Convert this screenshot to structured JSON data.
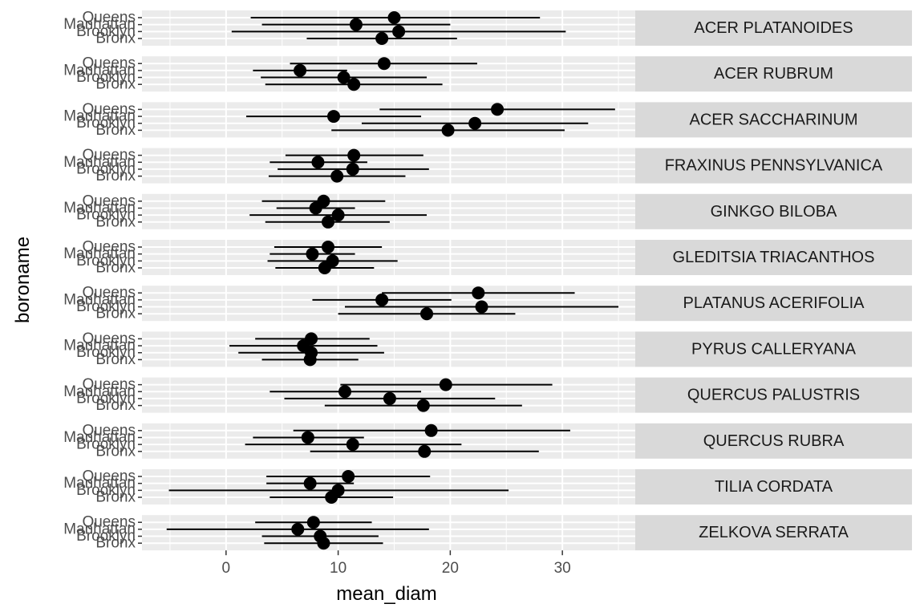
{
  "chart_data": {
    "type": "scatter",
    "subtype": "faceted point-range (mean ± error bar)",
    "xlabel": "mean_diam",
    "ylabel": "boroname",
    "xlim": [
      -7.5,
      36.5
    ],
    "x_ticks": [
      0,
      10,
      20,
      30
    ],
    "boroughs": [
      "Queens",
      "Manhattan",
      "Brooklyn",
      "Bronx"
    ],
    "grid": "on",
    "strip_position": "right",
    "colors": {
      "panel_bg": "#ebebeb",
      "strip_bg": "#d9d9d9",
      "point": "#000000",
      "gridline": "#ffffff"
    },
    "facets": [
      {
        "species": "ACER PLATANOIDES",
        "points": [
          {
            "borough": "Queens",
            "mean": 15.0,
            "lo": 2.2,
            "hi": 28.0
          },
          {
            "borough": "Manhattan",
            "mean": 11.6,
            "lo": 3.2,
            "hi": 20.0
          },
          {
            "borough": "Brooklyn",
            "mean": 15.4,
            "lo": 0.5,
            "hi": 30.3
          },
          {
            "borough": "Bronx",
            "mean": 13.9,
            "lo": 7.2,
            "hi": 20.6
          }
        ]
      },
      {
        "species": "ACER RUBRUM",
        "points": [
          {
            "borough": "Queens",
            "mean": 14.1,
            "lo": 5.7,
            "hi": 22.4
          },
          {
            "borough": "Manhattan",
            "mean": 6.6,
            "lo": 2.4,
            "hi": 10.8
          },
          {
            "borough": "Brooklyn",
            "mean": 10.5,
            "lo": 3.1,
            "hi": 17.9
          },
          {
            "borough": "Bronx",
            "mean": 11.4,
            "lo": 3.5,
            "hi": 19.3
          }
        ]
      },
      {
        "species": "ACER SACCHARINUM",
        "points": [
          {
            "borough": "Queens",
            "mean": 24.2,
            "lo": 13.7,
            "hi": 34.7
          },
          {
            "borough": "Manhattan",
            "mean": 9.6,
            "lo": 1.8,
            "hi": 17.4
          },
          {
            "borough": "Brooklyn",
            "mean": 22.2,
            "lo": 12.1,
            "hi": 32.3
          },
          {
            "borough": "Bronx",
            "mean": 19.8,
            "lo": 9.4,
            "hi": 30.2
          }
        ]
      },
      {
        "species": "FRAXINUS PENNSYLVANICA",
        "points": [
          {
            "borough": "Queens",
            "mean": 11.4,
            "lo": 5.3,
            "hi": 17.6
          },
          {
            "borough": "Manhattan",
            "mean": 8.2,
            "lo": 3.9,
            "hi": 12.6
          },
          {
            "borough": "Brooklyn",
            "mean": 11.3,
            "lo": 4.6,
            "hi": 18.1
          },
          {
            "borough": "Bronx",
            "mean": 9.9,
            "lo": 3.8,
            "hi": 16.0
          }
        ]
      },
      {
        "species": "GINKGO BILOBA",
        "points": [
          {
            "borough": "Queens",
            "mean": 8.7,
            "lo": 3.2,
            "hi": 14.2
          },
          {
            "borough": "Manhattan",
            "mean": 8.0,
            "lo": 4.5,
            "hi": 11.5
          },
          {
            "borough": "Brooklyn",
            "mean": 10.0,
            "lo": 2.1,
            "hi": 17.9
          },
          {
            "borough": "Bronx",
            "mean": 9.1,
            "lo": 3.5,
            "hi": 14.6
          }
        ]
      },
      {
        "species": "GLEDITSIA TRIACANTHOS",
        "points": [
          {
            "borough": "Queens",
            "mean": 9.1,
            "lo": 4.3,
            "hi": 13.9
          },
          {
            "borough": "Manhattan",
            "mean": 7.7,
            "lo": 3.9,
            "hi": 11.5
          },
          {
            "borough": "Brooklyn",
            "mean": 9.5,
            "lo": 3.7,
            "hi": 15.3
          },
          {
            "borough": "Bronx",
            "mean": 8.8,
            "lo": 4.4,
            "hi": 13.2
          }
        ]
      },
      {
        "species": "PLATANUS ACERIFOLIA",
        "points": [
          {
            "borough": "Queens",
            "mean": 22.5,
            "lo": 13.9,
            "hi": 31.1
          },
          {
            "borough": "Manhattan",
            "mean": 13.9,
            "lo": 7.7,
            "hi": 20.1
          },
          {
            "borough": "Brooklyn",
            "mean": 22.8,
            "lo": 10.6,
            "hi": 35.0
          },
          {
            "borough": "Bronx",
            "mean": 17.9,
            "lo": 10.0,
            "hi": 25.8
          }
        ]
      },
      {
        "species": "PYRUS CALLERYANA",
        "points": [
          {
            "borough": "Queens",
            "mean": 7.6,
            "lo": 2.6,
            "hi": 12.8
          },
          {
            "borough": "Manhattan",
            "mean": 6.9,
            "lo": 0.3,
            "hi": 13.5
          },
          {
            "borough": "Brooklyn",
            "mean": 7.6,
            "lo": 1.1,
            "hi": 14.1
          },
          {
            "borough": "Bronx",
            "mean": 7.5,
            "lo": 3.2,
            "hi": 11.8
          }
        ]
      },
      {
        "species": "QUERCUS PALUSTRIS",
        "points": [
          {
            "borough": "Queens",
            "mean": 19.6,
            "lo": 10.2,
            "hi": 29.1
          },
          {
            "borough": "Manhattan",
            "mean": 10.6,
            "lo": 3.9,
            "hi": 17.4
          },
          {
            "borough": "Brooklyn",
            "mean": 14.6,
            "lo": 5.2,
            "hi": 24.0
          },
          {
            "borough": "Bronx",
            "mean": 17.6,
            "lo": 8.8,
            "hi": 26.4
          }
        ]
      },
      {
        "species": "QUERCUS RUBRA",
        "points": [
          {
            "borough": "Queens",
            "mean": 18.3,
            "lo": 6.0,
            "hi": 30.7
          },
          {
            "borough": "Manhattan",
            "mean": 7.3,
            "lo": 2.4,
            "hi": 12.3
          },
          {
            "borough": "Brooklyn",
            "mean": 11.3,
            "lo": 1.7,
            "hi": 21.0
          },
          {
            "borough": "Bronx",
            "mean": 17.7,
            "lo": 7.5,
            "hi": 27.9
          }
        ]
      },
      {
        "species": "TILIA CORDATA",
        "points": [
          {
            "borough": "Queens",
            "mean": 10.9,
            "lo": 3.6,
            "hi": 18.2
          },
          {
            "borough": "Manhattan",
            "mean": 7.5,
            "lo": 3.6,
            "hi": 11.4
          },
          {
            "borough": "Brooklyn",
            "mean": 10.0,
            "lo": -5.1,
            "hi": 25.2
          },
          {
            "borough": "Bronx",
            "mean": 9.4,
            "lo": 3.9,
            "hi": 14.9
          }
        ]
      },
      {
        "species": "ZELKOVA SERRATA",
        "points": [
          {
            "borough": "Queens",
            "mean": 7.8,
            "lo": 2.6,
            "hi": 13.0
          },
          {
            "borough": "Manhattan",
            "mean": 6.4,
            "lo": -5.3,
            "hi": 18.1
          },
          {
            "borough": "Brooklyn",
            "mean": 8.4,
            "lo": 3.2,
            "hi": 13.6
          },
          {
            "borough": "Bronx",
            "mean": 8.7,
            "lo": 3.4,
            "hi": 14.0
          }
        ]
      }
    ]
  }
}
